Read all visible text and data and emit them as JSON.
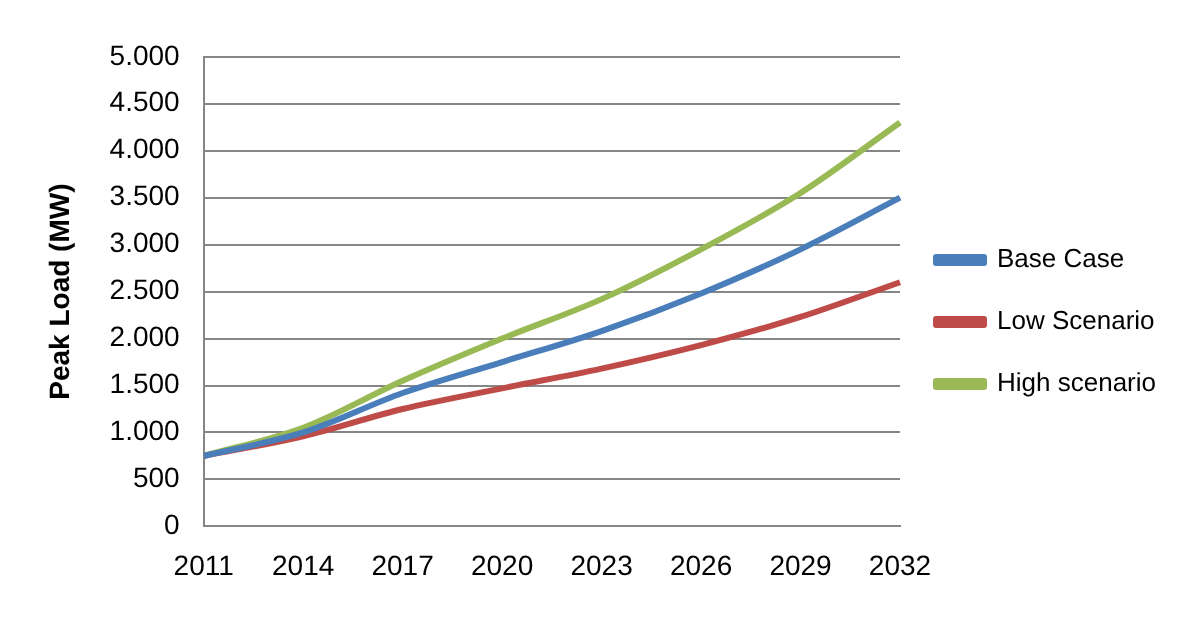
{
  "chart_data": {
    "type": "line",
    "ylabel": "Peak Load (MW)",
    "categories": [
      "2011",
      "2014",
      "2017",
      "2020",
      "2023",
      "2026",
      "2029",
      "2032"
    ],
    "series": [
      {
        "name": "Base Case",
        "color": "#4a7ebb",
        "values": [
          750,
          1000,
          1420,
          1750,
          2080,
          2480,
          2950,
          3500
        ]
      },
      {
        "name": "Low Scenario",
        "color": "#be4b48",
        "values": [
          750,
          960,
          1250,
          1470,
          1680,
          1930,
          2230,
          2600
        ]
      },
      {
        "name": "High scenario",
        "color": "#98b954",
        "values": [
          750,
          1050,
          1550,
          2000,
          2420,
          2950,
          3550,
          4300
        ]
      }
    ],
    "ylim": [
      0,
      5000
    ],
    "yticks": [
      {
        "value": 0,
        "label": "0"
      },
      {
        "value": 500,
        "label": "500"
      },
      {
        "value": 1000,
        "label": "1.000"
      },
      {
        "value": 1500,
        "label": "1.500"
      },
      {
        "value": 2000,
        "label": "2.000"
      },
      {
        "value": 2500,
        "label": "2.500"
      },
      {
        "value": 3000,
        "label": "3.000"
      },
      {
        "value": 3500,
        "label": "3.500"
      },
      {
        "value": 4000,
        "label": "4.000"
      },
      {
        "value": 4500,
        "label": "4.500"
      },
      {
        "value": 5000,
        "label": "5.000"
      }
    ],
    "grid": "y",
    "legend": "right",
    "marker": "none",
    "line_style": "solid"
  }
}
